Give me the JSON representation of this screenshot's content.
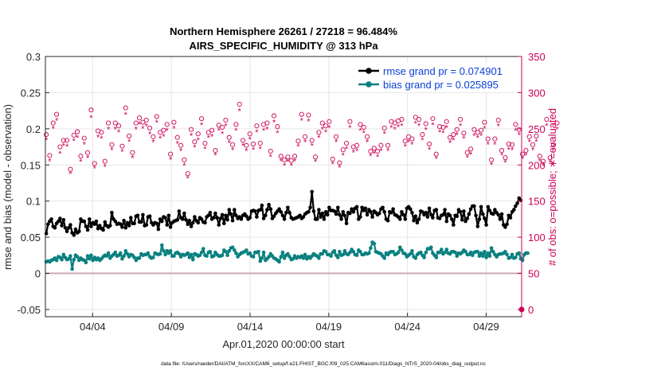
{
  "chart_data": {
    "type": "line",
    "title_line1": "Northern Hemisphere 26261 / 27218 = 96.484%",
    "title_line2": "AIRS_SPECIFIC_HUMIDITY @ 313 hPa",
    "xlabel": "Apr.01,2020 00:00:00 start",
    "ylabel_left": "rmse and bias (model - observation)",
    "ylabel_right": "# of obs: o=possible; ∗=evaluated",
    "footer": "data file: /Users/raeder/DAI/ATM_forcXX/CAM6_setup/f.e21.FHIST_BGC.f09_025.CAM6assim.011/Diags_NTrS_2020-04/obs_diag_output.nc",
    "x_range_days": [
      0.0,
      30.25
    ],
    "xticks": [
      {
        "day": 3,
        "label": "04/04"
      },
      {
        "day": 8,
        "label": "04/09"
      },
      {
        "day": 13,
        "label": "04/14"
      },
      {
        "day": 18,
        "label": "04/19"
      },
      {
        "day": 23,
        "label": "04/24"
      },
      {
        "day": 28,
        "label": "04/29"
      }
    ],
    "ylim_left": [
      -0.06,
      0.3
    ],
    "yticks_left": [
      {
        "v": -0.05,
        "label": "-0.05"
      },
      {
        "v": 0,
        "label": "0"
      },
      {
        "v": 0.05,
        "label": "0.05"
      },
      {
        "v": 0.1,
        "label": "0.1"
      },
      {
        "v": 0.15,
        "label": "0.15"
      },
      {
        "v": 0.2,
        "label": "0.2"
      },
      {
        "v": 0.25,
        "label": "0.25"
      },
      {
        "v": 0.3,
        "label": "0.3"
      }
    ],
    "ylim_right": [
      -10,
      350
    ],
    "yticks_right": [
      {
        "v": 0,
        "label": "0"
      },
      {
        "v": 50,
        "label": "50"
      },
      {
        "v": 100,
        "label": "100"
      },
      {
        "v": 150,
        "label": "150"
      },
      {
        "v": 200,
        "label": "200"
      },
      {
        "v": 250,
        "label": "250"
      },
      {
        "v": 300,
        "label": "300"
      },
      {
        "v": 350,
        "label": "350"
      }
    ],
    "legend": [
      {
        "label": "rmse grand pr = 0.074901",
        "color": "#000000"
      },
      {
        "label": "bias grand pr = 0.025895",
        "color": "#0a8080"
      }
    ],
    "colors": {
      "rmse": "#000000",
      "bias": "#0a8080",
      "counts": "#cc0055",
      "zero_line": "#c8a8b8",
      "grid": "#e6e6e6"
    },
    "rmse": [
      0.055,
      0.068,
      0.072,
      0.075,
      0.065,
      0.063,
      0.069,
      0.072,
      0.076,
      0.066,
      0.074,
      0.063,
      0.058,
      0.063,
      0.067,
      0.056,
      0.053,
      0.061,
      0.056,
      0.058,
      0.075,
      0.072,
      0.072,
      0.065,
      0.06,
      0.075,
      0.065,
      0.07,
      0.068,
      0.072,
      0.062,
      0.066,
      0.062,
      0.06,
      0.071,
      0.066,
      0.064,
      0.066,
      0.084,
      0.075,
      0.072,
      0.068,
      0.069,
      0.068,
      0.064,
      0.073,
      0.063,
      0.07,
      0.066,
      0.077,
      0.069,
      0.069,
      0.079,
      0.08,
      0.071,
      0.071,
      0.081,
      0.066,
      0.067,
      0.078,
      0.079,
      0.07,
      0.067,
      0.07,
      0.069,
      0.061,
      0.075,
      0.072,
      0.078,
      0.077,
      0.067,
      0.08,
      0.064,
      0.07,
      0.072,
      0.073,
      0.074,
      0.086,
      0.077,
      0.075,
      0.083,
      0.074,
      0.068,
      0.073,
      0.065,
      0.07,
      0.078,
      0.073,
      0.07,
      0.077,
      0.075,
      0.071,
      0.07,
      0.078,
      0.08,
      0.084,
      0.075,
      0.077,
      0.083,
      0.077,
      0.067,
      0.076,
      0.081,
      0.069,
      0.08,
      0.074,
      0.088,
      0.082,
      0.073,
      0.088,
      0.08,
      0.076,
      0.078,
      0.075,
      0.08,
      0.082,
      0.079,
      0.075,
      0.077,
      0.086,
      0.087,
      0.086,
      0.078,
      0.087,
      0.088,
      0.094,
      0.076,
      0.08,
      0.088,
      0.095,
      0.089,
      0.076,
      0.079,
      0.083,
      0.086,
      0.089,
      0.085,
      0.08,
      0.075,
      0.084,
      0.091,
      0.084,
      0.077,
      0.075,
      0.076,
      0.077,
      0.078,
      0.08,
      0.076,
      0.078,
      0.082,
      0.084,
      0.085,
      0.091,
      0.113,
      0.086,
      0.075,
      0.075,
      0.088,
      0.078,
      0.083,
      0.075,
      0.085,
      0.081,
      0.091,
      0.087,
      0.087,
      0.086,
      0.082,
      0.091,
      0.081,
      0.075,
      0.085,
      0.08,
      0.069,
      0.084,
      0.083,
      0.089,
      0.085,
      0.09,
      0.092,
      0.075,
      0.078,
      0.091,
      0.087,
      0.09,
      0.081,
      0.088,
      0.085,
      0.078,
      0.086,
      0.084,
      0.081,
      0.083,
      0.089,
      0.091,
      0.085,
      0.075,
      0.073,
      0.085,
      0.084,
      0.089,
      0.081,
      0.08,
      0.078,
      0.075,
      0.085,
      0.081,
      0.075,
      0.09,
      0.092,
      0.089,
      0.084,
      0.073,
      0.079,
      0.07,
      0.075,
      0.086,
      0.085,
      0.081,
      0.084,
      0.078,
      0.09,
      0.081,
      0.077,
      0.087,
      0.088,
      0.077,
      0.076,
      0.08,
      0.081,
      0.088,
      0.072,
      0.082,
      0.08,
      0.075,
      0.067,
      0.08,
      0.079,
      0.088,
      0.085,
      0.074,
      0.086,
      0.072,
      0.076,
      0.082,
      0.089,
      0.093,
      0.093,
      0.08,
      0.065,
      0.075,
      0.092,
      0.082,
      0.076,
      0.067,
      0.092,
      0.087,
      0.083,
      0.082,
      0.088,
      0.084,
      0.081,
      0.075,
      0.082,
      0.067,
      0.064,
      0.068,
      0.08,
      0.077,
      0.085,
      0.088,
      0.093,
      0.097,
      0.104,
      0.101
    ],
    "bias": [
      0.016,
      0.017,
      0.016,
      0.018,
      0.019,
      0.021,
      0.018,
      0.023,
      0.022,
      0.019,
      0.026,
      0.022,
      0.019,
      0.02,
      0.024,
      0.006,
      0.019,
      0.025,
      0.023,
      0.018,
      0.021,
      0.019,
      0.018,
      0.015,
      0.024,
      0.02,
      0.025,
      0.018,
      0.022,
      0.019,
      0.021,
      0.018,
      0.02,
      0.023,
      0.025,
      0.024,
      0.028,
      0.021,
      0.024,
      0.026,
      0.029,
      0.024,
      0.025,
      0.028,
      0.02,
      0.024,
      0.031,
      0.027,
      0.023,
      0.026,
      0.025,
      0.022,
      0.018,
      0.021,
      0.021,
      0.027,
      0.025,
      0.026,
      0.026,
      0.028,
      0.023,
      0.021,
      0.022,
      0.028,
      0.027,
      0.026,
      0.027,
      0.039,
      0.031,
      0.026,
      0.031,
      0.028,
      0.031,
      0.024,
      0.024,
      0.028,
      0.029,
      0.027,
      0.023,
      0.026,
      0.025,
      0.026,
      0.028,
      0.022,
      0.026,
      0.019,
      0.027,
      0.026,
      0.024,
      0.025,
      0.029,
      0.034,
      0.025,
      0.024,
      0.029,
      0.03,
      0.023,
      0.024,
      0.029,
      0.026,
      0.024,
      0.024,
      0.025,
      0.032,
      0.03,
      0.025,
      0.031,
      0.035,
      0.036,
      0.032,
      0.028,
      0.023,
      0.026,
      0.028,
      0.029,
      0.03,
      0.032,
      0.027,
      0.028,
      0.024,
      0.023,
      0.029,
      0.029,
      0.03,
      0.017,
      0.021,
      0.029,
      0.018,
      0.02,
      0.023,
      0.027,
      0.024,
      0.021,
      0.02,
      0.018,
      0.016,
      0.023,
      0.029,
      0.021,
      0.025,
      0.027,
      0.023,
      0.019,
      0.02,
      0.024,
      0.021,
      0.023,
      0.022,
      0.024,
      0.021,
      0.026,
      0.02,
      0.023,
      0.021,
      0.024,
      0.027,
      0.025,
      0.024,
      0.021,
      0.027,
      0.027,
      0.031,
      0.03,
      0.026,
      0.026,
      0.024,
      0.029,
      0.031,
      0.025,
      0.022,
      0.03,
      0.025,
      0.026,
      0.031,
      0.027,
      0.026,
      0.029,
      0.033,
      0.03,
      0.026,
      0.025,
      0.032,
      0.03,
      0.026,
      0.026,
      0.028,
      0.027,
      0.028,
      0.035,
      0.043,
      0.041,
      0.03,
      0.029,
      0.028,
      0.027,
      0.024,
      0.021,
      0.028,
      0.026,
      0.029,
      0.03,
      0.03,
      0.026,
      0.027,
      0.029,
      0.036,
      0.032,
      0.028,
      0.027,
      0.023,
      0.025,
      0.027,
      0.031,
      0.023,
      0.021,
      0.026,
      0.028,
      0.029,
      0.025,
      0.022,
      0.029,
      0.034,
      0.034,
      0.036,
      0.028,
      0.025,
      0.022,
      0.029,
      0.029,
      0.033,
      0.027,
      0.029,
      0.033,
      0.028,
      0.027,
      0.03,
      0.03,
      0.029,
      0.024,
      0.028,
      0.027,
      0.029,
      0.032,
      0.03,
      0.026,
      0.026,
      0.029,
      0.025,
      0.029,
      0.03,
      0.03,
      0.024,
      0.028,
      0.024,
      0.03,
      0.022,
      0.028,
      0.024,
      0.035,
      0.03,
      0.026,
      0.023,
      0.026,
      0.027,
      0.027,
      0.028,
      0.03,
      0.026,
      0.021,
      0.022,
      0.026,
      0.021,
      0.022,
      0.027,
      0.028,
      0.02,
      0.018,
      0.026,
      0.028,
      0.028
    ],
    "possible": [
      242,
      254,
      213,
      212,
      258,
      281,
      270,
      215,
      225,
      241,
      234,
      232,
      234,
      232,
      194,
      178,
      241,
      264,
      246,
      251,
      212,
      255,
      237,
      240,
      217,
      229,
      276,
      201,
      202,
      217,
      247,
      235,
      245,
      228,
      205,
      274,
      258,
      263,
      228,
      255,
      258,
      264,
      254,
      201,
      226,
      221,
      279,
      256,
      240,
      229,
      217,
      267,
      258,
      233,
      265,
      229,
      259,
      255,
      262,
      217,
      251,
      257,
      239,
      216,
      267,
      202,
      245,
      256,
      248,
      243,
      256,
      261,
      215,
      209,
      259,
      259,
      238,
      264,
      227,
      238,
      207,
      212,
      188,
      209,
      249,
      218,
      232,
      266,
      243,
      261,
      264,
      238,
      230,
      211,
      245,
      225,
      248,
      245,
      220,
      260,
      255,
      260,
      252,
      260,
      262,
      232,
      238,
      208,
      228,
      221,
      256,
      236,
      284,
      231,
      234,
      231,
      227,
      254,
      243,
      217,
      229,
      231,
      254,
      225,
      230,
      222,
      256,
      221,
      258,
      236,
      219,
      262,
      268,
      227,
      253,
      260,
      212,
      265,
      207,
      208,
      211,
      245,
      206,
      223,
      212,
      215,
      233,
      267,
      270,
      247,
      239,
      256,
      269,
      229,
      234,
      245,
      211,
      226,
      245,
      256,
      258,
      273,
      254,
      244,
      260,
      231,
      208,
      219,
      239,
      220,
      203,
      217,
      221,
      245,
      230,
      240,
      260,
      236,
      225,
      216,
      227,
      240,
      256,
      225,
      252,
      279,
      239,
      250,
      219,
      261,
      223,
      219,
      219,
      264,
      227,
      214,
      251,
      235,
      227,
      242,
      260,
      239,
      258,
      244,
      261,
      208,
      263,
      253,
      233,
      220,
      239,
      234,
      236,
      257,
      266,
      242,
      263,
      228,
      242,
      215,
      257,
      231,
      229,
      276,
      264,
      233,
      215,
      245,
      253,
      243,
      252,
      256,
      260,
      207,
      238,
      241,
      242,
      269,
      249,
      203,
      263,
      253,
      244,
      235,
      217,
      248,
      222,
      231,
      249,
      240,
      245,
      233,
      248,
      252,
      259,
      246,
      236,
      264,
      207,
      235,
      236,
      239,
      262,
      242,
      220,
      228,
      210,
      218,
      229,
      245,
      228,
      225,
      256,
      232,
      249,
      258,
      215,
      263,
      220,
      221,
      239,
      248,
      228,
      247,
      240,
      225,
      212,
      255,
      205,
      234,
      263,
      255,
      210,
      200,
      228,
      264,
      258,
      220
    ],
    "evaluated": [
      235,
      248,
      206,
      207,
      251,
      272,
      262,
      208,
      216,
      233,
      227,
      224,
      226,
      224,
      188,
      173,
      234,
      255,
      238,
      244,
      205,
      247,
      229,
      233,
      210,
      222,
      266,
      195,
      196,
      210,
      239,
      228,
      237,
      221,
      198,
      264,
      250,
      255,
      221,
      247,
      250,
      256,
      246,
      195,
      219,
      214,
      270,
      248,
      233,
      222,
      210,
      258,
      250,
      226,
      257,
      221,
      251,
      247,
      254,
      210,
      243,
      249,
      232,
      209,
      259,
      195,
      237,
      248,
      240,
      235,
      248,
      253,
      208,
      203,
      251,
      251,
      230,
      256,
      220,
      231,
      200,
      206,
      182,
      203,
      241,
      211,
      225,
      258,
      235,
      253,
      256,
      231,
      223,
      205,
      238,
      218,
      240,
      238,
      214,
      252,
      248,
      252,
      244,
      252,
      254,
      225,
      231,
      202,
      221,
      214,
      248,
      229,
      275,
      224,
      227,
      224,
      220,
      246,
      236,
      210,
      222,
      224,
      246,
      218,
      223,
      215,
      248,
      214,
      250,
      229,
      212,
      254,
      260,
      220,
      245,
      252,
      206,
      257,
      200,
      202,
      205,
      238,
      200,
      216,
      206,
      209,
      226,
      259,
      262,
      240,
      232,
      248,
      261,
      222,
      227,
      238,
      205,
      219,
      238,
      248,
      250,
      265,
      246,
      237,
      252,
      224,
      202,
      212,
      232,
      214,
      197,
      210,
      214,
      238,
      223,
      233,
      252,
      229,
      218,
      210,
      220,
      233,
      248,
      218,
      245,
      271,
      232,
      242,
      213,
      253,
      216,
      212,
      212,
      256,
      220,
      208,
      244,
      228,
      220,
      235,
      252,
      232,
      250,
      237,
      253,
      202,
      255,
      246,
      226,
      213,
      232,
      227,
      229,
      249,
      258,
      235,
      255,
      221,
      235,
      209,
      249,
      224,
      222,
      268,
      256,
      226,
      209,
      238,
      246,
      236,
      245,
      248,
      252,
      201,
      231,
      234,
      235,
      261,
      242,
      197,
      255,
      246,
      237,
      228,
      211,
      241,
      215,
      224,
      241,
      233,
      238,
      226,
      241,
      245,
      251,
      239,
      229,
      256,
      201,
      228,
      229,
      232,
      254,
      235,
      214,
      221,
      204,
      212,
      222,
      238,
      221,
      218,
      248,
      225,
      242,
      250,
      209,
      255,
      214,
      215,
      232,
      241,
      221,
      240,
      233,
      218,
      206,
      247,
      199,
      227,
      255,
      247,
      204,
      194,
      221,
      256,
      250,
      214
    ]
  }
}
